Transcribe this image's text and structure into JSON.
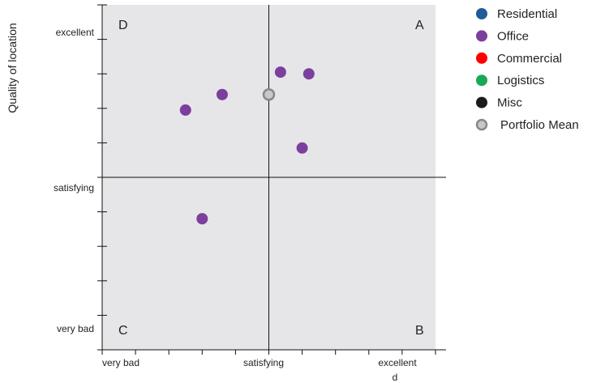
{
  "chart_data": {
    "type": "scatter",
    "ylabel": "Quality of location",
    "xlabel_fragment": "d",
    "x_categories": [
      "very bad",
      "satisfying",
      "excellent"
    ],
    "y_categories": [
      "very bad",
      "satisfying",
      "excellent"
    ],
    "xlim": [
      -5,
      5
    ],
    "ylim": [
      -5,
      5
    ],
    "quadrants": {
      "top_left": "D",
      "top_right": "A",
      "bottom_left": "C",
      "bottom_right": "B"
    },
    "series": [
      {
        "name": "Residential",
        "color": "#1f5c99",
        "points": []
      },
      {
        "name": "Office",
        "color": "#7b3f9e",
        "points": [
          {
            "x": -2.5,
            "y": 1.95
          },
          {
            "x": 0.35,
            "y": 3.05
          },
          {
            "x": 1.2,
            "y": 3.0
          },
          {
            "x": -1.4,
            "y": 2.4
          },
          {
            "x": -2.0,
            "y": -1.2
          },
          {
            "x": 1.0,
            "y": 0.85
          }
        ]
      },
      {
        "name": "Commercial",
        "color": "#ff0000",
        "points": []
      },
      {
        "name": "Logistics",
        "color": "#1aa856",
        "points": []
      },
      {
        "name": "Misc",
        "color": "#1a1a1a",
        "points": []
      },
      {
        "name": "Portfolio Mean",
        "color": "#c8c8c8",
        "stroke": "#888888",
        "points": [
          {
            "x": 0.0,
            "y": 2.4
          }
        ]
      }
    ],
    "background": "#e6e6e8"
  }
}
